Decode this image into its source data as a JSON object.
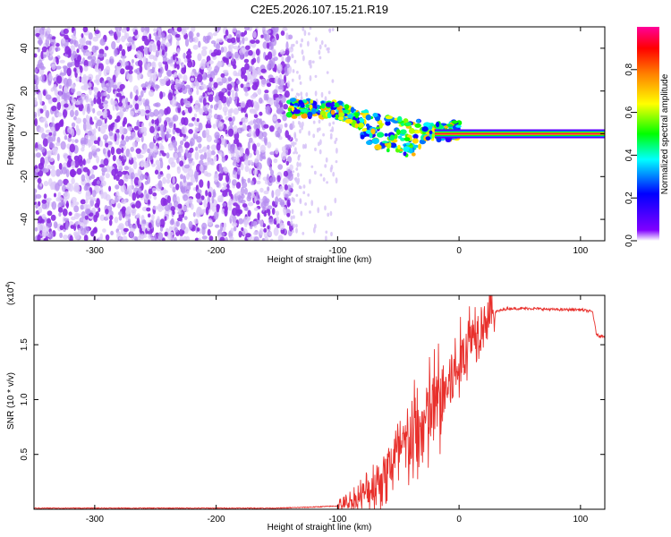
{
  "title": "C2E5.2026.107.15.21.R19",
  "chart_data": [
    {
      "type": "heatmap",
      "xlabel": "Height of straight line (km)",
      "ylabel": "Frequency (Hz)",
      "xlim": [
        -350,
        120
      ],
      "ylim": [
        -50,
        50
      ],
      "x_ticks": [
        -300,
        -200,
        -100,
        0,
        100
      ],
      "y_ticks": [
        -40,
        -20,
        0,
        20,
        40
      ],
      "colorbar": {
        "label": "Normalized spectral amplitude",
        "range": [
          0,
          1
        ],
        "ticks": [
          "0.0",
          "0.2",
          "0.4",
          "0.6",
          "0.8"
        ],
        "colors": [
          "#ffffff",
          "#7f00ff",
          "#0000ff",
          "#00ffff",
          "#00ff00",
          "#ffff00",
          "#ff7f00",
          "#ff0000",
          "#ff00aa"
        ]
      },
      "regions": [
        {
          "name": "noise",
          "x_range": [
            -350,
            -138
          ],
          "freq_range": [
            -50,
            50
          ],
          "amplitude": 0.15
        },
        {
          "name": "transition-scatter",
          "x_range": [
            -138,
            -100
          ],
          "freq_range": [
            -50,
            50
          ],
          "amplitude": 0.05
        },
        {
          "name": "signal-trace",
          "points": [
            [
              -140,
              12
            ],
            [
              -120,
              12
            ],
            [
              -100,
              11
            ],
            [
              -90,
              9
            ],
            [
              -80,
              6
            ],
            [
              -70,
              2
            ],
            [
              -60,
              0
            ],
            [
              -50,
              0
            ],
            [
              -40,
              -3
            ],
            [
              -30,
              0
            ],
            [
              -20,
              1
            ],
            [
              -10,
              1
            ],
            [
              0,
              2
            ],
            [
              10,
              1
            ],
            [
              120,
              1
            ]
          ],
          "amplitude": 0.6
        },
        {
          "name": "carrier-line",
          "x_range": [
            -20,
            120
          ],
          "freq": 0,
          "amplitude": 1.0
        }
      ]
    },
    {
      "type": "line",
      "xlabel": "Height of straight line (km)",
      "ylabel": "SNR (10 * v/v)",
      "y_multiplier": "(x10",
      "y_multiplier_exp": "4",
      "y_multiplier_close": ")",
      "xlim": [
        -350,
        120
      ],
      "ylim": [
        0,
        1.95
      ],
      "x_ticks": [
        -300,
        -200,
        -100,
        0,
        100
      ],
      "y_ticks": [
        "0.5",
        "1.0",
        "1.5"
      ],
      "color": "#e8302c",
      "series": [
        {
          "name": "SNR",
          "x": [
            -350,
            -150,
            -120,
            -100,
            -90,
            -80,
            -70,
            -60,
            -50,
            -40,
            -30,
            -20,
            -10,
            0,
            10,
            20,
            30,
            40,
            60,
            80,
            100,
            110,
            113,
            115,
            120
          ],
          "y": [
            0.01,
            0.01,
            0.02,
            0.03,
            0.06,
            0.12,
            0.22,
            0.35,
            0.5,
            0.62,
            0.75,
            0.95,
            1.1,
            1.3,
            1.6,
            1.72,
            1.8,
            1.83,
            1.83,
            1.82,
            1.82,
            1.8,
            1.6,
            1.58,
            1.58
          ]
        }
      ]
    }
  ]
}
